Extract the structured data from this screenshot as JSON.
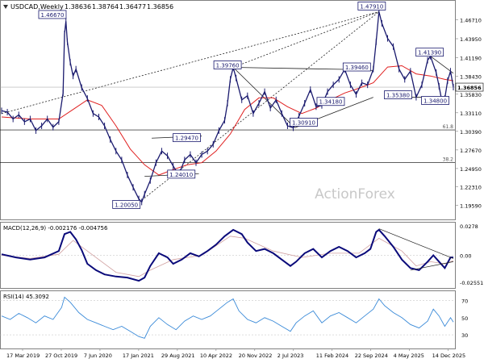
{
  "chart_data": {
    "type": "line",
    "symbol": "USDCAD,Weekly",
    "ohlc": [
      "1.38636",
      "1.38764",
      "1.36477",
      "1.36856"
    ],
    "last_price": "1.36856",
    "watermark": "ActionForex",
    "x_tick_labels": [
      "17 Mar 2019",
      "27 Oct 2019",
      "7 Jun 2020",
      "17 Jan 2021",
      "29 Aug 2021",
      "10 Apr 2022",
      "20 Nov 2022",
      "2 Jul 2023",
      "11 Feb 2024",
      "22 Sep 2024",
      "4 May 2025",
      "14 Dec 2025"
    ],
    "price_panel": {
      "ylim": [
        1.175,
        1.495
      ],
      "y_ticks": [
        "1.46710",
        "1.43950",
        "1.41190",
        "1.38430",
        "1.35830",
        "1.33110",
        "1.30390",
        "1.27670",
        "1.24950",
        "1.22310",
        "1.19590"
      ],
      "fib_levels": [
        {
          "label": "61.8",
          "value": 1.306
        },
        {
          "label": "38.2",
          "value": 1.258
        }
      ],
      "horizontal_line": 1.3686,
      "price_labels": [
        "1.46670",
        "1.47910",
        "1.39760",
        "1.39460",
        "1.41390",
        "1.29470",
        "1.24010",
        "1.20050",
        "1.30910",
        "1.34180",
        "1.35380",
        "1.34800"
      ],
      "price_series": [
        [
          0,
          1.334
        ],
        [
          4,
          1.332
        ],
        [
          8,
          1.322
        ],
        [
          12,
          1.328
        ],
        [
          16,
          1.318
        ],
        [
          20,
          1.322
        ],
        [
          24,
          1.305
        ],
        [
          28,
          1.312
        ],
        [
          32,
          1.322
        ],
        [
          36,
          1.31
        ],
        [
          40,
          1.318
        ],
        [
          43,
          1.36
        ],
        [
          44,
          1.4465
        ],
        [
          45,
          1.465
        ],
        [
          46,
          1.435
        ],
        [
          48,
          1.405
        ],
        [
          50,
          1.385
        ],
        [
          52,
          1.395
        ],
        [
          56,
          1.368
        ],
        [
          60,
          1.352
        ],
        [
          64,
          1.33
        ],
        [
          68,
          1.325
        ],
        [
          72,
          1.312
        ],
        [
          76,
          1.292
        ],
        [
          80,
          1.275
        ],
        [
          84,
          1.262
        ],
        [
          88,
          1.24
        ],
        [
          92,
          1.222
        ],
        [
          96,
          1.205
        ],
        [
          98,
          1.2005
        ],
        [
          100,
          1.212
        ],
        [
          104,
          1.232
        ],
        [
          108,
          1.258
        ],
        [
          112,
          1.275
        ],
        [
          116,
          1.268
        ],
        [
          120,
          1.253
        ],
        [
          124,
          1.2401
        ],
        [
          128,
          1.262
        ],
        [
          132,
          1.27
        ],
        [
          136,
          1.258
        ],
        [
          140,
          1.27
        ],
        [
          144,
          1.275
        ],
        [
          148,
          1.285
        ],
        [
          152,
          1.305
        ],
        [
          156,
          1.32
        ],
        [
          158,
          1.345
        ],
        [
          160,
          1.38
        ],
        [
          162,
          1.3976
        ],
        [
          164,
          1.382
        ],
        [
          168,
          1.35
        ],
        [
          172,
          1.356
        ],
        [
          176,
          1.33
        ],
        [
          180,
          1.345
        ],
        [
          184,
          1.362
        ],
        [
          188,
          1.338
        ],
        [
          192,
          1.35
        ],
        [
          196,
          1.33
        ],
        [
          200,
          1.312
        ],
        [
          204,
          1.3091
        ],
        [
          208,
          1.326
        ],
        [
          212,
          1.345
        ],
        [
          216,
          1.365
        ],
        [
          220,
          1.34
        ],
        [
          224,
          1.3418
        ],
        [
          228,
          1.362
        ],
        [
          232,
          1.372
        ],
        [
          236,
          1.38
        ],
        [
          240,
          1.3946
        ],
        [
          244,
          1.372
        ],
        [
          248,
          1.358
        ],
        [
          252,
          1.375
        ],
        [
          256,
          1.372
        ],
        [
          260,
          1.395
        ],
        [
          262,
          1.435
        ],
        [
          264,
          1.4791
        ],
        [
          266,
          1.462
        ],
        [
          270,
          1.44
        ],
        [
          274,
          1.428
        ],
        [
          278,
          1.395
        ],
        [
          282,
          1.38
        ],
        [
          286,
          1.392
        ],
        [
          290,
          1.3538
        ],
        [
          294,
          1.372
        ],
        [
          298,
          1.408
        ],
        [
          300,
          1.4139
        ],
        [
          304,
          1.39
        ],
        [
          306,
          1.37
        ],
        [
          308,
          1.348
        ],
        [
          310,
          1.352
        ],
        [
          312,
          1.378
        ],
        [
          314,
          1.392
        ],
        [
          316,
          1.3686
        ]
      ],
      "moving_average": [
        [
          0,
          1.325
        ],
        [
          20,
          1.322
        ],
        [
          40,
          1.322
        ],
        [
          50,
          1.336
        ],
        [
          60,
          1.35
        ],
        [
          70,
          1.342
        ],
        [
          80,
          1.312
        ],
        [
          90,
          1.278
        ],
        [
          100,
          1.255
        ],
        [
          110,
          1.24
        ],
        [
          120,
          1.248
        ],
        [
          130,
          1.255
        ],
        [
          140,
          1.258
        ],
        [
          150,
          1.275
        ],
        [
          160,
          1.3
        ],
        [
          170,
          1.336
        ],
        [
          180,
          1.353
        ],
        [
          190,
          1.353
        ],
        [
          200,
          1.34
        ],
        [
          210,
          1.33
        ],
        [
          220,
          1.338
        ],
        [
          230,
          1.35
        ],
        [
          240,
          1.36
        ],
        [
          250,
          1.367
        ],
        [
          260,
          1.375
        ],
        [
          270,
          1.398
        ],
        [
          280,
          1.4
        ],
        [
          290,
          1.388
        ],
        [
          300,
          1.385
        ],
        [
          310,
          1.38
        ],
        [
          316,
          1.378
        ]
      ],
      "trendlines": [
        {
          "from": [
            98,
            1.203
          ],
          "to": [
            264,
            1.4791
          ],
          "style": "dotted"
        },
        {
          "from": [
            0,
            1.33
          ],
          "to": [
            264,
            1.4791
          ],
          "style": "dotted"
        },
        {
          "from": [
            162,
            1.3976
          ],
          "to": [
            264,
            1.4791
          ],
          "style": "dotted"
        },
        {
          "from": [
            162,
            1.3976
          ],
          "to": [
            240,
            1.3946
          ],
          "style": "solid"
        },
        {
          "from": [
            162,
            1.3976
          ],
          "to": [
            205,
            1.3095
          ],
          "style": "solid"
        },
        {
          "from": [
            205,
            1.3091
          ],
          "to": [
            260,
            1.3538
          ],
          "style": "solid"
        },
        {
          "from": [
            105,
            1.294
          ],
          "to": [
            140,
            1.297
          ],
          "style": "solid"
        },
        {
          "from": [
            100,
            1.238
          ],
          "to": [
            138,
            1.242
          ],
          "style": "solid"
        },
        {
          "from": [
            240,
            1.3946
          ],
          "to": [
            260,
            1.393
          ],
          "style": "solid"
        },
        {
          "from": [
            270,
            1.3538
          ],
          "to": [
            300,
            1.3538
          ],
          "style": "solid"
        },
        {
          "from": [
            300,
            1.4139
          ],
          "to": [
            316,
            1.389
          ],
          "style": "solid"
        },
        {
          "from": [
            296,
            1.348
          ],
          "to": [
            310,
            1.348
          ],
          "style": "solid"
        }
      ]
    },
    "macd_panel": {
      "title": "MACD(12,26,9) -0.002176 -0.004756",
      "ylim": [
        -0.03,
        0.03
      ],
      "y_ticks": [
        "0.0278",
        "0.00",
        "-0.025511"
      ],
      "macd": [
        [
          0,
          0.001
        ],
        [
          10,
          -0.002
        ],
        [
          20,
          -0.004
        ],
        [
          30,
          -0.002
        ],
        [
          40,
          0.004
        ],
        [
          44,
          0.02
        ],
        [
          48,
          0.022
        ],
        [
          52,
          0.015
        ],
        [
          56,
          0.005
        ],
        [
          60,
          -0.008
        ],
        [
          66,
          -0.014
        ],
        [
          72,
          -0.018
        ],
        [
          80,
          -0.02
        ],
        [
          88,
          -0.021
        ],
        [
          96,
          -0.024
        ],
        [
          100,
          -0.021
        ],
        [
          104,
          -0.01
        ],
        [
          110,
          0.002
        ],
        [
          116,
          -0.002
        ],
        [
          120,
          -0.008
        ],
        [
          126,
          -0.004
        ],
        [
          132,
          0.002
        ],
        [
          138,
          -0.001
        ],
        [
          144,
          0.004
        ],
        [
          150,
          0.01
        ],
        [
          156,
          0.018
        ],
        [
          162,
          0.024
        ],
        [
          168,
          0.02
        ],
        [
          172,
          0.012
        ],
        [
          178,
          0.004
        ],
        [
          184,
          0.006
        ],
        [
          190,
          0.002
        ],
        [
          196,
          -0.004
        ],
        [
          202,
          -0.01
        ],
        [
          206,
          -0.006
        ],
        [
          212,
          0.002
        ],
        [
          218,
          0.006
        ],
        [
          224,
          -0.002
        ],
        [
          230,
          0.004
        ],
        [
          236,
          0.008
        ],
        [
          242,
          0.004
        ],
        [
          248,
          -0.002
        ],
        [
          254,
          0.002
        ],
        [
          258,
          0.006
        ],
        [
          262,
          0.022
        ],
        [
          264,
          0.024
        ],
        [
          268,
          0.018
        ],
        [
          274,
          0.008
        ],
        [
          280,
          -0.004
        ],
        [
          286,
          -0.012
        ],
        [
          292,
          -0.014
        ],
        [
          298,
          -0.006
        ],
        [
          302,
          0.0
        ],
        [
          306,
          -0.006
        ],
        [
          310,
          -0.012
        ],
        [
          314,
          -0.002
        ],
        [
          316,
          -0.002
        ]
      ],
      "signal": [
        [
          0,
          0.0
        ],
        [
          20,
          -0.003
        ],
        [
          40,
          0.001
        ],
        [
          50,
          0.014
        ],
        [
          60,
          0.004
        ],
        [
          80,
          -0.016
        ],
        [
          96,
          -0.02
        ],
        [
          104,
          -0.014
        ],
        [
          120,
          -0.004
        ],
        [
          140,
          0.0
        ],
        [
          160,
          0.018
        ],
        [
          170,
          0.016
        ],
        [
          190,
          0.004
        ],
        [
          210,
          -0.002
        ],
        [
          230,
          0.002
        ],
        [
          250,
          0.002
        ],
        [
          264,
          0.016
        ],
        [
          280,
          0.004
        ],
        [
          290,
          -0.01
        ],
        [
          300,
          -0.006
        ],
        [
          310,
          -0.008
        ],
        [
          316,
          -0.005
        ]
      ],
      "trendlines": [
        {
          "from": [
            264,
            0.025
          ],
          "to": [
            316,
            -0.003
          ]
        },
        {
          "from": [
            286,
            -0.014
          ],
          "to": [
            316,
            -0.006
          ]
        }
      ]
    },
    "rsi_panel": {
      "title": "RSI(14) 45.3092",
      "ylim": [
        15,
        80
      ],
      "y_ticks": [
        "70",
        "50",
        "30"
      ],
      "rsi": [
        [
          0,
          52
        ],
        [
          6,
          48
        ],
        [
          12,
          55
        ],
        [
          18,
          50
        ],
        [
          24,
          44
        ],
        [
          30,
          52
        ],
        [
          36,
          48
        ],
        [
          42,
          62
        ],
        [
          44,
          74
        ],
        [
          48,
          68
        ],
        [
          54,
          56
        ],
        [
          60,
          48
        ],
        [
          66,
          44
        ],
        [
          72,
          40
        ],
        [
          78,
          36
        ],
        [
          84,
          40
        ],
        [
          90,
          34
        ],
        [
          96,
          28
        ],
        [
          100,
          26
        ],
        [
          104,
          40
        ],
        [
          110,
          50
        ],
        [
          116,
          42
        ],
        [
          122,
          36
        ],
        [
          128,
          46
        ],
        [
          134,
          52
        ],
        [
          140,
          48
        ],
        [
          146,
          52
        ],
        [
          152,
          60
        ],
        [
          158,
          68
        ],
        [
          162,
          72
        ],
        [
          166,
          58
        ],
        [
          172,
          48
        ],
        [
          178,
          44
        ],
        [
          184,
          50
        ],
        [
          190,
          46
        ],
        [
          196,
          40
        ],
        [
          202,
          34
        ],
        [
          206,
          44
        ],
        [
          212,
          52
        ],
        [
          218,
          58
        ],
        [
          224,
          44
        ],
        [
          230,
          52
        ],
        [
          236,
          56
        ],
        [
          242,
          50
        ],
        [
          248,
          44
        ],
        [
          254,
          52
        ],
        [
          260,
          60
        ],
        [
          264,
          72
        ],
        [
          268,
          64
        ],
        [
          274,
          56
        ],
        [
          280,
          50
        ],
        [
          286,
          42
        ],
        [
          292,
          38
        ],
        [
          298,
          46
        ],
        [
          302,
          60
        ],
        [
          306,
          52
        ],
        [
          310,
          40
        ],
        [
          314,
          50
        ],
        [
          316,
          45
        ]
      ]
    }
  }
}
